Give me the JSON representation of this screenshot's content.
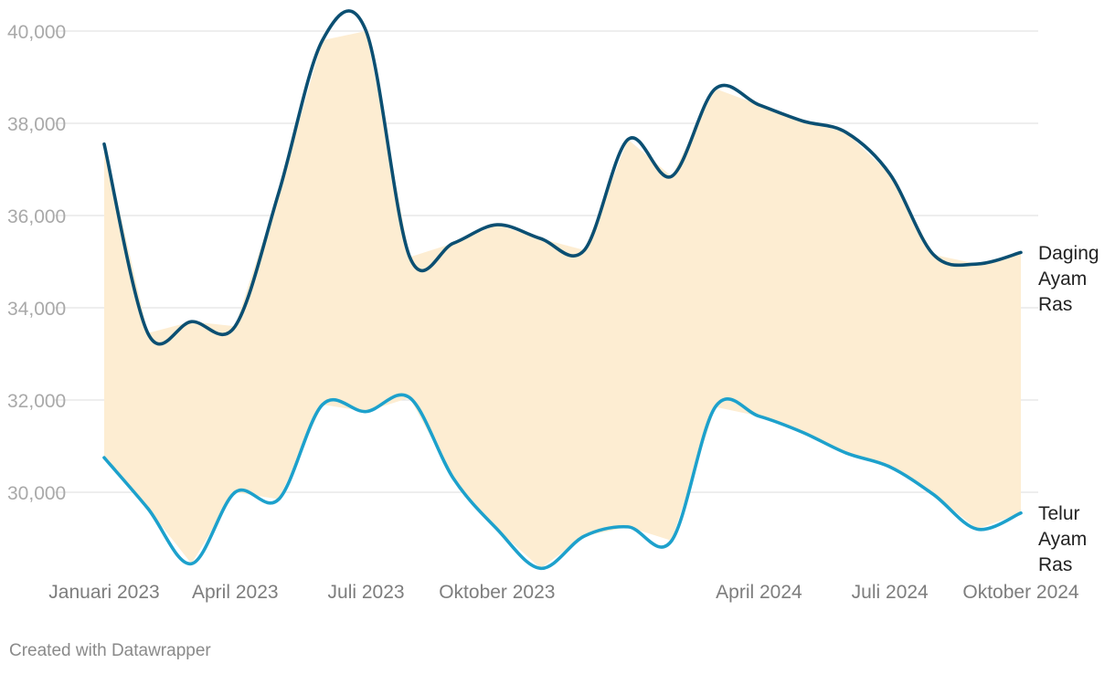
{
  "footer": {
    "credit": "Created with Datawrapper"
  },
  "colors": {
    "area_fill": "#fdedd2",
    "gridline": "#e3e3e3"
  },
  "chart_data": {
    "type": "line",
    "title": "",
    "xlabel": "",
    "ylabel": "",
    "ylim": [
      28300,
      40500
    ],
    "grid": true,
    "legend": "inline-right",
    "x": [
      "2023-01",
      "2023-02",
      "2023-03",
      "2023-04",
      "2023-05",
      "2023-06",
      "2023-07",
      "2023-08",
      "2023-09",
      "2023-10",
      "2023-11",
      "2023-12",
      "2024-01",
      "2024-02",
      "2024-03",
      "2024-04",
      "2024-05",
      "2024-06",
      "2024-07",
      "2024-08",
      "2024-09",
      "2024-10"
    ],
    "x_ticks": [
      {
        "date": "2023-01",
        "label": "Januari 2023"
      },
      {
        "date": "2023-04",
        "label": "April 2023"
      },
      {
        "date": "2023-07",
        "label": "Juli 2023"
      },
      {
        "date": "2023-10",
        "label": "Oktober 2023"
      },
      {
        "date": "2024-04",
        "label": "April 2024"
      },
      {
        "date": "2024-07",
        "label": "Juli 2024"
      },
      {
        "date": "2024-10",
        "label": "Oktober 2024"
      }
    ],
    "y_ticks": [
      {
        "value": 30000,
        "label": "30,000"
      },
      {
        "value": 32000,
        "label": "32,000"
      },
      {
        "value": 34000,
        "label": "34,000"
      },
      {
        "value": 36000,
        "label": "36,000"
      },
      {
        "value": 38000,
        "label": "38,000"
      },
      {
        "value": 40000,
        "label": "40,000"
      }
    ],
    "range_fill": "between-series",
    "series": [
      {
        "name": "Daging Ayam Ras",
        "label_lines": [
          "Daging",
          "Ayam",
          "Ras"
        ],
        "color": "#0b4f72",
        "values": [
          37550,
          33450,
          33700,
          33600,
          36500,
          39800,
          40000,
          35100,
          35400,
          35800,
          35500,
          35250,
          37650,
          36850,
          38750,
          38400,
          38050,
          37800,
          36900,
          35150,
          34950,
          35200
        ]
      },
      {
        "name": "Telur Ayam Ras",
        "label_lines": [
          "Telur",
          "Ayam",
          "Ras"
        ],
        "color": "#1da1cc",
        "values": [
          30750,
          29650,
          28450,
          30000,
          29850,
          31900,
          31750,
          32050,
          30300,
          29200,
          28350,
          29050,
          29250,
          28950,
          31850,
          31650,
          31300,
          30850,
          30550,
          29950,
          29200,
          29550
        ]
      }
    ]
  }
}
